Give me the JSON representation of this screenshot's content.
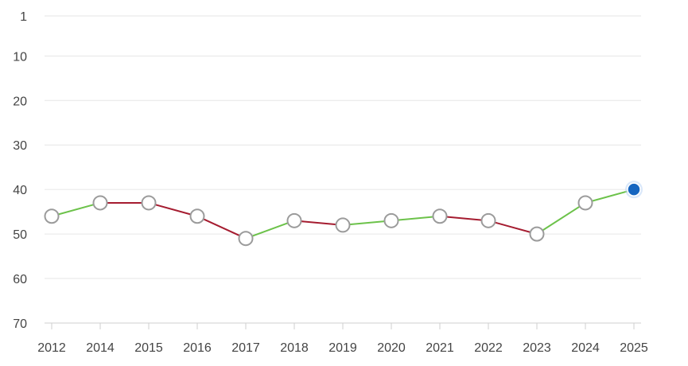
{
  "chart_data": {
    "type": "line",
    "title": "",
    "xlabel": "",
    "ylabel": "",
    "x_categories": [
      "2012",
      "2014",
      "2015",
      "2016",
      "2017",
      "2018",
      "2019",
      "2020",
      "2021",
      "2022",
      "2023",
      "2024",
      "2025"
    ],
    "y_axis": {
      "reversed": true,
      "ticks": [
        "1",
        "10",
        "20",
        "30",
        "40",
        "50",
        "60",
        "70"
      ],
      "range": [
        1,
        70
      ]
    },
    "grid": true,
    "legend": "none",
    "series": [
      {
        "values": [
          46,
          43,
          43,
          46,
          51,
          47,
          48,
          47,
          46,
          47,
          50,
          43,
          40
        ],
        "colors": {
          "improving": "#6cc24a",
          "declining": "#a51c30"
        },
        "marker_fill": "#ffffff",
        "marker_stroke": "#9b9b9b",
        "highlight_last": {
          "fill": "#1565c0",
          "glow": "#bcd6f5"
        }
      }
    ]
  }
}
